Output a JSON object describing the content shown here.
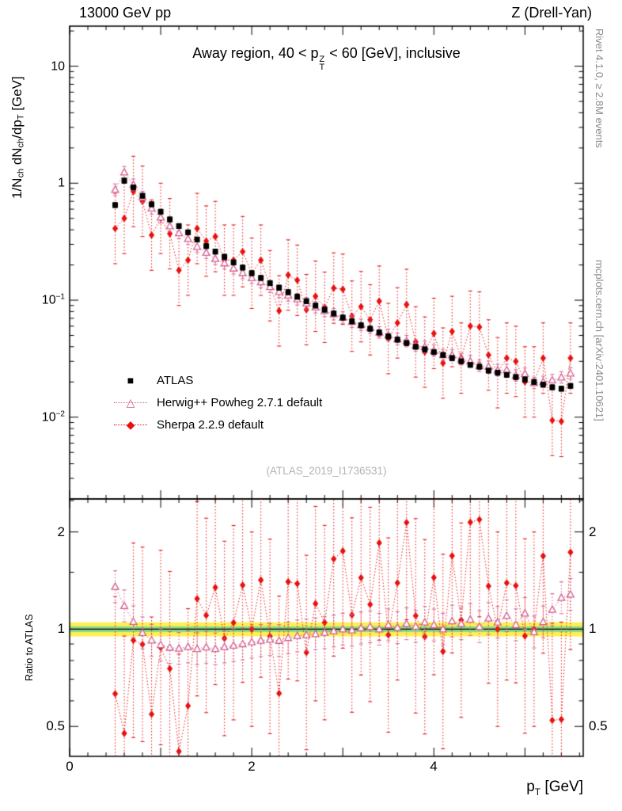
{
  "chart_data": {
    "type": "scatter",
    "header_left": "13000 GeV pp",
    "header_right": "Z (Drell-Yan)",
    "panel_title": {
      "pre": "Away region, 40 < p",
      "sup": "Z",
      "sub": "T",
      "post": " < 60 [GeV], inclusive"
    },
    "watermark": "(ATLAS_2019_I1736531)",
    "side_note_top": "Rivet 4.1.0, ≥ 2.8M events",
    "side_note_bottom": "mcplots.cern.ch [arXiv:2401.10621]",
    "ylabel": {
      "p1": "1/N",
      "s1": "ch",
      "p2": " dN",
      "s2": "ch",
      "p3": "/dp",
      "s3": "T",
      "p4": " [GeV]"
    },
    "ratio_ylabel": "Ratio to ATLAS",
    "xlabel": {
      "p1": "p",
      "s1": "T",
      "p2": " [GeV]"
    },
    "axes": {
      "x_range": [
        0,
        5.64
      ],
      "y_range": [
        0.002,
        22
      ],
      "y_scale": "log",
      "ratio_range": [
        0.404,
        2.53
      ],
      "ratio_scale": "log",
      "x_tick_labels": [
        "0",
        "2",
        "4"
      ],
      "x_tick_values": [
        0,
        2,
        4
      ],
      "y_tick_labels": [
        {
          "base": "10",
          "exp": ""
        },
        {
          "base": "1",
          "exp": ""
        },
        {
          "base": "10",
          "exp": "−1"
        },
        {
          "base": "10",
          "exp": "−2"
        }
      ],
      "y_tick_values": [
        10,
        1,
        0.1,
        0.01
      ],
      "ratio_tick_labels": [
        "2",
        "1",
        "0.5"
      ],
      "ratio_tick_values": [
        2,
        1,
        0.5
      ]
    },
    "band": {
      "outer": [
        0.95,
        1.05
      ],
      "outer_color": "#ffee55",
      "inner": [
        0.98,
        1.02
      ],
      "inner_color": "#8bd98b",
      "line_color": "#000000"
    },
    "x": [
      0.5,
      0.6,
      0.7,
      0.8,
      0.9,
      1.0,
      1.1,
      1.2,
      1.3,
      1.4,
      1.5,
      1.6,
      1.7,
      1.8,
      1.9,
      2.0,
      2.1,
      2.2,
      2.3,
      2.4,
      2.5,
      2.6,
      2.7,
      2.8,
      2.9,
      3.0,
      3.1,
      3.2,
      3.3,
      3.4,
      3.5,
      3.6,
      3.7,
      3.8,
      3.9,
      4.0,
      4.1,
      4.2,
      4.3,
      4.4,
      4.5,
      4.6,
      4.7,
      4.8,
      4.9,
      5.0,
      5.1,
      5.2,
      5.3,
      5.4,
      5.5
    ],
    "series": [
      {
        "name": "ATLAS",
        "color": "#000000",
        "marker": "square",
        "glyph": "■",
        "line": false,
        "dashed_err": false,
        "err_factor": 1.05,
        "values": [
          0.65,
          1.05,
          0.92,
          0.78,
          0.66,
          0.57,
          0.49,
          0.43,
          0.38,
          0.33,
          0.29,
          0.26,
          0.235,
          0.21,
          0.19,
          0.17,
          0.155,
          0.14,
          0.128,
          0.117,
          0.107,
          0.098,
          0.09,
          0.083,
          0.077,
          0.071,
          0.066,
          0.061,
          0.057,
          0.053,
          0.049,
          0.046,
          0.043,
          0.04,
          0.038,
          0.036,
          0.034,
          0.032,
          0.03,
          0.028,
          0.027,
          0.025,
          0.024,
          0.023,
          0.022,
          0.021,
          0.02,
          0.019,
          0.018,
          0.0175,
          0.0185
        ]
      },
      {
        "name": "Herwig++ Powheg 2.7.1 default",
        "color": "#d35f8d",
        "marker": "triangle",
        "glyph": "△",
        "line": true,
        "dashed_err": true,
        "err_factor": 1.12,
        "values": [
          0.88,
          1.24,
          0.97,
          0.76,
          0.61,
          0.51,
          0.43,
          0.375,
          0.335,
          0.287,
          0.255,
          0.226,
          0.207,
          0.187,
          0.171,
          0.155,
          0.143,
          0.13,
          0.118,
          0.11,
          0.102,
          0.094,
          0.087,
          0.081,
          0.076,
          0.071,
          0.0655,
          0.0615,
          0.058,
          0.053,
          0.0505,
          0.0465,
          0.0447,
          0.0408,
          0.0399,
          0.0371,
          0.034,
          0.0339,
          0.0312,
          0.03,
          0.0275,
          0.027,
          0.0252,
          0.0253,
          0.0227,
          0.0235,
          0.0196,
          0.02,
          0.0207,
          0.0219,
          0.0237
        ]
      },
      {
        "name": "Sherpa 2.2.9 default",
        "color": "#e8110e",
        "marker": "diamond",
        "glyph": "◆",
        "line": true,
        "dashed_err": true,
        "err_factor": 2.0,
        "values": [
          0.41,
          0.5,
          0.85,
          0.7,
          0.36,
          0.5,
          0.37,
          0.18,
          0.22,
          0.41,
          0.32,
          0.35,
          0.22,
          0.22,
          0.26,
          0.17,
          0.22,
          0.133,
          0.081,
          0.164,
          0.148,
          0.083,
          0.108,
          0.087,
          0.127,
          0.124,
          0.073,
          0.088,
          0.068,
          0.098,
          0.047,
          0.064,
          0.092,
          0.044,
          0.036,
          0.052,
          0.029,
          0.054,
          0.032,
          0.06,
          0.059,
          0.034,
          0.024,
          0.032,
          0.03,
          0.02,
          0.02,
          0.032,
          0.0094,
          0.0092,
          0.032
        ]
      }
    ],
    "ratio_reference_index": 0
  }
}
